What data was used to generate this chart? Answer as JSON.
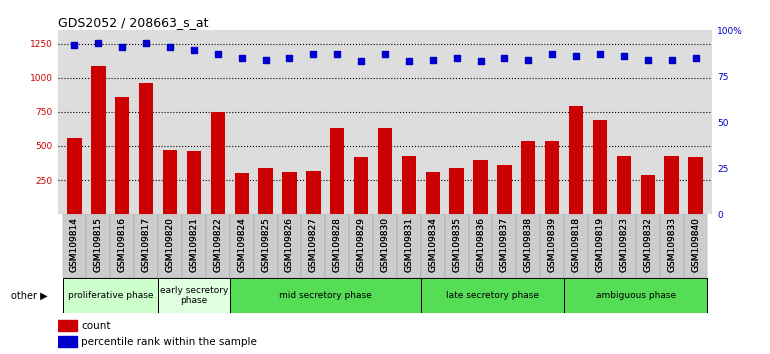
{
  "title": "GDS2052 / 208663_s_at",
  "categories": [
    "GSM109814",
    "GSM109815",
    "GSM109816",
    "GSM109817",
    "GSM109820",
    "GSM109821",
    "GSM109822",
    "GSM109824",
    "GSM109825",
    "GSM109826",
    "GSM109827",
    "GSM109828",
    "GSM109829",
    "GSM109830",
    "GSM109831",
    "GSM109834",
    "GSM109835",
    "GSM109836",
    "GSM109837",
    "GSM109838",
    "GSM109839",
    "GSM109818",
    "GSM109819",
    "GSM109823",
    "GSM109832",
    "GSM109833",
    "GSM109840"
  ],
  "bar_values": [
    560,
    1090,
    860,
    960,
    470,
    460,
    750,
    300,
    340,
    310,
    320,
    635,
    420,
    635,
    430,
    310,
    340,
    400,
    360,
    540,
    540,
    790,
    690,
    430,
    290,
    430,
    420
  ],
  "percentile_values": [
    92,
    93,
    91,
    93,
    91,
    89,
    87,
    85,
    84,
    85,
    87,
    87,
    83,
    87,
    83,
    84,
    85,
    83,
    85,
    84,
    87,
    86,
    87,
    86,
    84,
    84,
    85
  ],
  "phase_groups": [
    {
      "label": "proliferative phase",
      "start": 0,
      "end": 4,
      "color": "#ccffcc"
    },
    {
      "label": "early secretory\nphase",
      "start": 4,
      "end": 7,
      "color": "#e0ffe0"
    },
    {
      "label": "mid secretory phase",
      "start": 7,
      "end": 15,
      "color": "#55dd55"
    },
    {
      "label": "late secretory phase",
      "start": 15,
      "end": 21,
      "color": "#55dd55"
    },
    {
      "label": "ambiguous phase",
      "start": 21,
      "end": 27,
      "color": "#55dd55"
    }
  ],
  "bar_color": "#cc0000",
  "dot_color": "#0000cc",
  "ylim_left": [
    0,
    1350
  ],
  "ylim_right": [
    0,
    100
  ],
  "yticks_left": [
    250,
    500,
    750,
    1000,
    1250
  ],
  "yticks_right": [
    0,
    25,
    50,
    75,
    100
  ],
  "background_color": "#ffffff",
  "plot_bg_color": "#dddddd",
  "title_fontsize": 9,
  "tick_fontsize": 6.5,
  "label_fontsize": 7.5
}
